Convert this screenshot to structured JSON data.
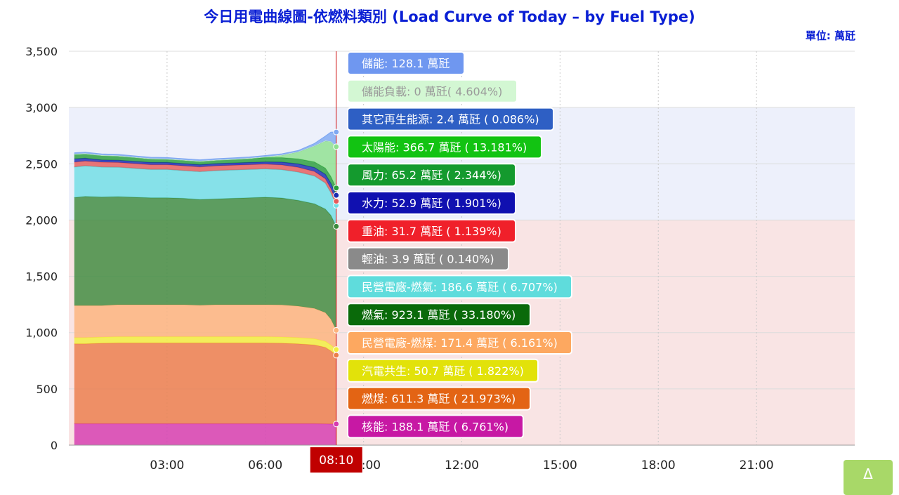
{
  "title": "今日用電曲線圖-依燃料類別 (Load Curve of Today – by Fuel Type)",
  "unit": "單位: 萬瓩",
  "top_button": {
    "label": "Δ"
  },
  "chart_data": {
    "type": "area",
    "stacked": true,
    "title": "今日用電曲線圖-依燃料類別 (Load Curve of Today – by Fuel Type)",
    "ylim": [
      0,
      3500
    ],
    "yticks": [
      0,
      500,
      1000,
      1500,
      2000,
      2500,
      3000,
      3500
    ],
    "ytick_labels": [
      "0",
      "500",
      "1,000",
      "1,500",
      "2,000",
      "2,500",
      "3,000",
      "3,500"
    ],
    "xlim": [
      "00:00",
      "24:00"
    ],
    "xticks": [
      "03:00",
      "06:00",
      "09:00",
      "12:00",
      "15:00",
      "18:00",
      "21:00"
    ],
    "xtick_labels": [
      "03:00",
      "06:00",
      "09:00",
      "12:00",
      "15:00",
      "18:00",
      "21:00"
    ],
    "x": [
      "00:10",
      "00:30",
      "01:00",
      "01:30",
      "02:00",
      "02:30",
      "03:00",
      "03:30",
      "04:00",
      "04:30",
      "05:00",
      "05:30",
      "06:00",
      "06:30",
      "07:00",
      "07:30",
      "07:50",
      "08:00",
      "08:10"
    ],
    "current_time": "08:10",
    "bands": [
      {
        "from": 0,
        "to": 2000,
        "color": "#f9e4e4"
      },
      {
        "from": 2000,
        "to": 3000,
        "color": "#edf0fb"
      }
    ],
    "series": [
      {
        "name": "核能",
        "color": "#d63bb0",
        "values": [
          190,
          190,
          190,
          190,
          190,
          190,
          190,
          190,
          190,
          190,
          190,
          190,
          190,
          190,
          190,
          190,
          189,
          188,
          188
        ]
      },
      {
        "name": "燃煤",
        "color": "#eb7d4b",
        "values": [
          710,
          710,
          715,
          718,
          718,
          718,
          718,
          718,
          718,
          718,
          718,
          718,
          718,
          716,
          710,
          700,
          680,
          650,
          611
        ]
      },
      {
        "name": "汽電共生",
        "color": "#f2ef3d",
        "values": [
          55,
          55,
          55,
          55,
          55,
          55,
          55,
          55,
          55,
          55,
          55,
          55,
          55,
          55,
          55,
          55,
          54,
          52,
          51
        ]
      },
      {
        "name": "民營電廠-燃煤",
        "color": "#fdb37c",
        "values": [
          285,
          285,
          280,
          285,
          285,
          285,
          285,
          285,
          280,
          285,
          285,
          285,
          285,
          285,
          280,
          270,
          255,
          230,
          171
        ]
      },
      {
        "name": "燃氣",
        "color": "#3d8a3d",
        "values": [
          960,
          970,
          965,
          960,
          955,
          950,
          950,
          945,
          940,
          940,
          945,
          950,
          955,
          950,
          940,
          930,
          920,
          923,
          923
        ]
      },
      {
        "name": "民營電廠-燃氣",
        "color": "#6fdde4",
        "values": [
          270,
          270,
          265,
          260,
          255,
          250,
          250,
          245,
          245,
          250,
          250,
          250,
          250,
          250,
          250,
          245,
          230,
          200,
          187
        ]
      },
      {
        "name": "輕油",
        "color": "#999999",
        "values": [
          4,
          4,
          4,
          4,
          4,
          4,
          4,
          4,
          4,
          4,
          4,
          4,
          4,
          4,
          4,
          4,
          4,
          4,
          4
        ]
      },
      {
        "name": "重油",
        "color": "#e65a5a",
        "values": [
          40,
          40,
          40,
          40,
          40,
          40,
          40,
          40,
          40,
          40,
          40,
          40,
          40,
          40,
          40,
          38,
          35,
          33,
          32
        ]
      },
      {
        "name": "水力",
        "color": "#1a2bb0",
        "values": [
          30,
          25,
          20,
          20,
          20,
          20,
          20,
          20,
          20,
          20,
          20,
          20,
          20,
          25,
          30,
          35,
          40,
          48,
          53
        ]
      },
      {
        "name": "風力",
        "color": "#2a9e3a",
        "values": [
          40,
          40,
          40,
          38,
          35,
          32,
          30,
          30,
          30,
          30,
          32,
          35,
          38,
          40,
          45,
          50,
          55,
          60,
          65
        ]
      },
      {
        "name": "太陽能",
        "color": "#8fe08f",
        "values": [
          0,
          0,
          0,
          0,
          0,
          0,
          0,
          0,
          0,
          0,
          0,
          0,
          5,
          20,
          60,
          140,
          240,
          310,
          367
        ]
      },
      {
        "name": "其它再生能源",
        "color": "#3f67c8",
        "values": [
          3,
          3,
          3,
          3,
          3,
          3,
          3,
          3,
          3,
          3,
          3,
          3,
          3,
          3,
          3,
          3,
          3,
          2,
          2
        ]
      },
      {
        "name": "儲能負載",
        "color": "#d6f5d6",
        "values": [
          0,
          0,
          0,
          0,
          0,
          0,
          0,
          0,
          0,
          0,
          0,
          0,
          0,
          0,
          0,
          0,
          0,
          0,
          0
        ]
      },
      {
        "name": "儲能",
        "color": "#7fa8f2",
        "values": [
          10,
          10,
          10,
          10,
          10,
          10,
          10,
          10,
          10,
          10,
          10,
          10,
          10,
          10,
          10,
          20,
          40,
          80,
          128
        ]
      }
    ],
    "tooltip": {
      "items": [
        {
          "name": "儲能",
          "text": "儲能: 128.1 萬瓩",
          "color": "#6f97f0"
        },
        {
          "name": "儲能負載",
          "text": "儲能負載: 0 萬瓩( 4.604%)",
          "color": "#d3f7d3"
        },
        {
          "name": "其它再生能源",
          "text": "其它再生能源: 2.4 萬瓩 ( 0.086%)",
          "color": "#2e5fc4"
        },
        {
          "name": "太陽能",
          "text": "太陽能: 366.7 萬瓩 ( 13.181%)",
          "color": "#12c312"
        },
        {
          "name": "風力",
          "text": "風力: 65.2 萬瓩 ( 2.344%)",
          "color": "#149a2e"
        },
        {
          "name": "水力",
          "text": "水力: 52.9 萬瓩 ( 1.901%)",
          "color": "#1010b0"
        },
        {
          "name": "重油",
          "text": "重油: 31.7 萬瓩 ( 1.139%)",
          "color": "#f0202a"
        },
        {
          "name": "輕油",
          "text": "輕油: 3.9 萬瓩 ( 0.140%)",
          "color": "#8a8a8a"
        },
        {
          "name": "民營電廠-燃氣",
          "text": "民營電廠-燃氣: 186.6 萬瓩 ( 6.707%)",
          "color": "#5fdcdc"
        },
        {
          "name": "燃氣",
          "text": "燃氣: 923.1 萬瓩 ( 33.180%)",
          "color": "#0a6a0a"
        },
        {
          "name": "民營電廠-燃煤",
          "text": "民營電廠-燃煤: 171.4 萬瓩 ( 6.161%)",
          "color": "#fda860"
        },
        {
          "name": "汽電共生",
          "text": "汽電共生: 50.7 萬瓩 ( 1.822%)",
          "color": "#e2e20a"
        },
        {
          "name": "燃煤",
          "text": "燃煤: 611.3 萬瓩 ( 21.973%)",
          "color": "#e36414"
        },
        {
          "name": "核能",
          "text": "核能: 188.1 萬瓩 ( 6.761%)",
          "color": "#c718a4"
        }
      ]
    }
  }
}
